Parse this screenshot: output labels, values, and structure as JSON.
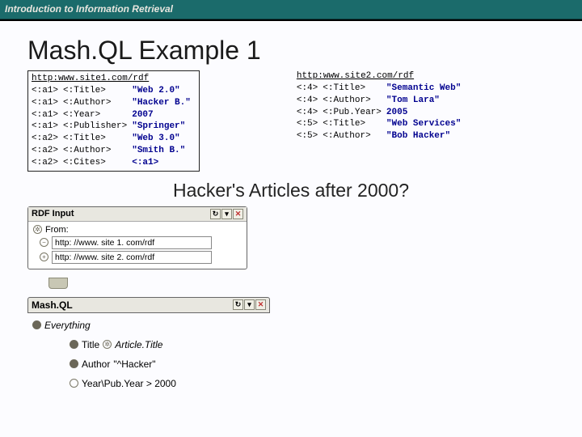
{
  "header": {
    "breadcrumb": "Introduction to Information Retrieval"
  },
  "title": "Mash.QL Example 1",
  "rdf1": {
    "url": "http:www.site1.com/rdf",
    "rows": [
      {
        "s": "<:a1>",
        "p": "<:Title>",
        "o": "\"Web 2.0\""
      },
      {
        "s": "<:a1>",
        "p": "<:Author>",
        "o": "\"Hacker B.\""
      },
      {
        "s": "<:a1>",
        "p": "<:Year>",
        "o": "2007"
      },
      {
        "s": "<:a1>",
        "p": "<:Publisher>",
        "o": "\"Springer\""
      },
      {
        "s": "<:a2>",
        "p": "<:Title>",
        "o": "\"Web 3.0\""
      },
      {
        "s": "<:a2>",
        "p": "<:Author>",
        "o": "\"Smith B.\""
      },
      {
        "s": "<:a2>",
        "p": "<:Cites>",
        "o": "<:a1>"
      }
    ]
  },
  "rdf2": {
    "url": "http:www.site2.com/rdf",
    "rows": [
      {
        "s": "<:4>",
        "p": "<:Title>",
        "o": "\"Semantic Web\""
      },
      {
        "s": "<:4>",
        "p": "<:Author>",
        "o": "\"Tom Lara\""
      },
      {
        "s": "<:4>",
        "p": "<:Pub.Year>",
        "o": "2005"
      },
      {
        "s": "<:5>",
        "p": "<:Title>",
        "o": "\"Web Services\""
      },
      {
        "s": "<:5>",
        "p": "<:Author>",
        "o": "\"Bob Hacker\""
      }
    ]
  },
  "question": "Hacker's Articles after 2000?",
  "pipe": {
    "rdfinput_label": "RDF Input",
    "from_label": "From:",
    "source1": "http: //www. site 1. com/rdf",
    "source2": "http: //www. site 2. com/rdf"
  },
  "mashql": {
    "label": "Mash.QL",
    "root": "Everything",
    "c1_pred": "Title",
    "c1_var": "Article.Title",
    "c2_pred": "Author",
    "c2_val": "\"^Hacker\"",
    "c3_expr": "Year\\Pub.Year > 2000"
  }
}
